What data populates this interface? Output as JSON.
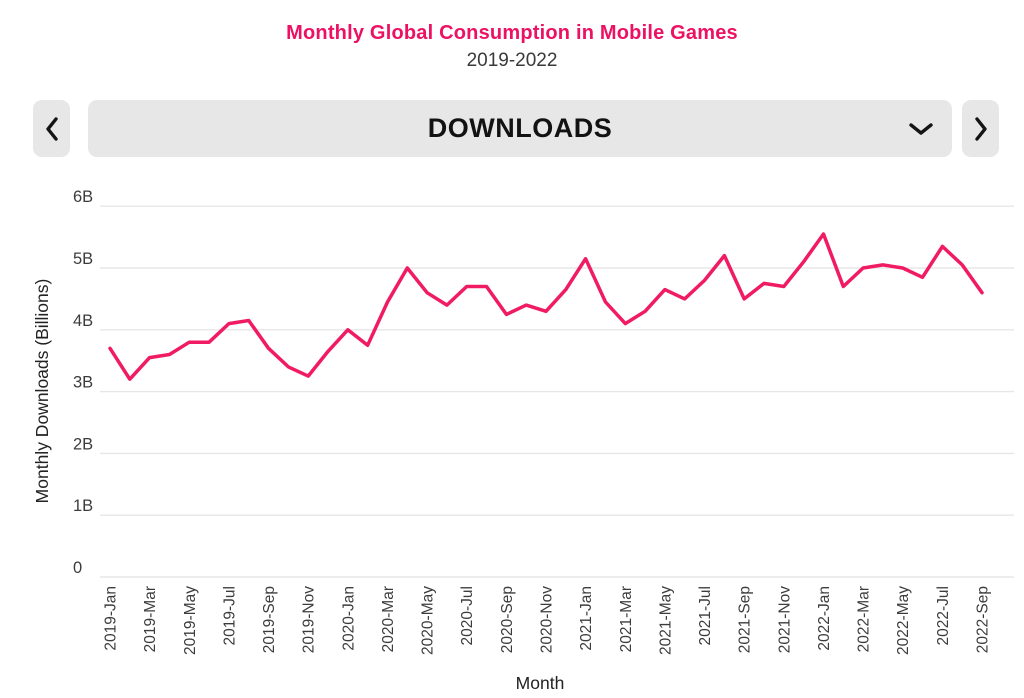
{
  "header": {
    "title": "Monthly Global Consumption in Mobile Games",
    "subtitle": "2019-2022"
  },
  "controls": {
    "prev_button": {
      "icon": "chevron-left"
    },
    "next_button": {
      "icon": "chevron-right"
    },
    "metric_selector": {
      "selected": "DOWNLOADS",
      "icon": "chevron-down"
    }
  },
  "colors": {
    "accent_pink": "#ED1164",
    "line_pink": "#F01B62",
    "control_bg": "#E7E7E7",
    "chevron": "#141414",
    "axis_text": "#3C3C3C",
    "gridline": "#E7E7E7"
  },
  "chart_data": {
    "type": "line",
    "title": "Monthly Global Consumption in Mobile Games",
    "subtitle": "2019-2022",
    "xlabel": "Month",
    "ylabel": "Monthly Downloads (Billions)",
    "ylim": [
      0,
      6
    ],
    "ytick_labels": [
      "0",
      "1B",
      "2B",
      "3B",
      "4B",
      "5B",
      "6B"
    ],
    "xtick_every": 2,
    "grid": "horizontal",
    "legend": "none",
    "x": [
      "2019-Jan",
      "2019-Feb",
      "2019-Mar",
      "2019-Apr",
      "2019-May",
      "2019-Jun",
      "2019-Jul",
      "2019-Aug",
      "2019-Sep",
      "2019-Oct",
      "2019-Nov",
      "2019-Dec",
      "2020-Jan",
      "2020-Feb",
      "2020-Mar",
      "2020-Apr",
      "2020-May",
      "2020-Jun",
      "2020-Jul",
      "2020-Aug",
      "2020-Sep",
      "2020-Oct",
      "2020-Nov",
      "2020-Dec",
      "2021-Jan",
      "2021-Feb",
      "2021-Mar",
      "2021-Apr",
      "2021-May",
      "2021-Jun",
      "2021-Jul",
      "2021-Aug",
      "2021-Sep",
      "2021-Oct",
      "2021-Nov",
      "2021-Dec",
      "2022-Jan",
      "2022-Feb",
      "2022-Mar",
      "2022-Apr",
      "2022-May",
      "2022-Jun",
      "2022-Jul",
      "2022-Aug",
      "2022-Sep"
    ],
    "series": [
      {
        "name": "DOWNLOADS",
        "color": "#F01B62",
        "values": [
          3.7,
          3.2,
          3.55,
          3.6,
          3.8,
          3.8,
          4.1,
          4.15,
          3.7,
          3.4,
          3.25,
          3.65,
          4.0,
          3.75,
          4.45,
          5.0,
          4.6,
          4.4,
          4.7,
          4.7,
          4.25,
          4.4,
          4.3,
          4.65,
          5.15,
          4.45,
          4.1,
          4.3,
          4.65,
          4.5,
          4.8,
          5.2,
          4.5,
          4.75,
          4.7,
          5.1,
          5.55,
          4.7,
          5.0,
          5.05,
          5.0,
          4.85,
          5.35,
          5.05,
          4.6
        ]
      }
    ]
  }
}
